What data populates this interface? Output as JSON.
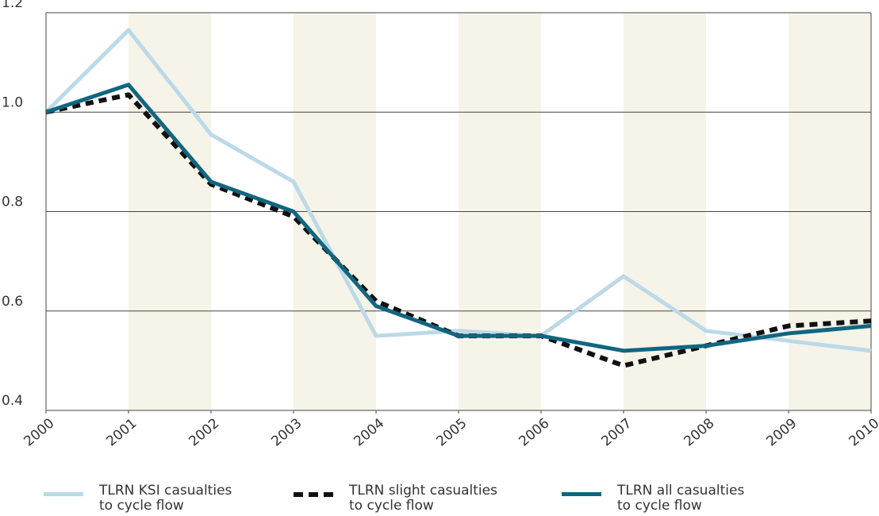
{
  "chart_data": {
    "type": "line",
    "x": [
      2000,
      2001,
      2002,
      2003,
      2004,
      2005,
      2006,
      2007,
      2008,
      2009,
      2010
    ],
    "xlim": [
      2000,
      2010
    ],
    "xticks": [
      2000,
      2001,
      2002,
      2003,
      2004,
      2005,
      2006,
      2007,
      2008,
      2009,
      2010
    ],
    "ylim": [
      0.4,
      1.2
    ],
    "yticks": [
      0.4,
      0.6,
      0.8,
      {
        "value": 1,
        "label": "1.0"
      },
      1.2
    ],
    "grid": true,
    "legend": "bottom",
    "series": [
      {
        "name": "TLRN KSI casualties\nto cycle flow",
        "color": "#bcd9e8",
        "style": "solid",
        "values": [
          1.0,
          1.165,
          0.955,
          0.86,
          0.55,
          0.56,
          0.55,
          0.67,
          0.56,
          0.54,
          0.52
        ]
      },
      {
        "name": "TLRN slight casualties\nto cycle flow",
        "color": "#111111",
        "style": "dashed",
        "values": [
          1.0,
          1.035,
          0.855,
          0.79,
          0.62,
          0.55,
          0.55,
          0.49,
          0.53,
          0.57,
          0.58
        ]
      },
      {
        "name": "TLRN all casualties\nto cycle flow",
        "color": "#11667f",
        "style": "solid",
        "values": [
          1.0,
          1.055,
          0.86,
          0.8,
          0.61,
          0.55,
          0.55,
          0.52,
          0.53,
          0.555,
          0.57
        ]
      }
    ]
  }
}
